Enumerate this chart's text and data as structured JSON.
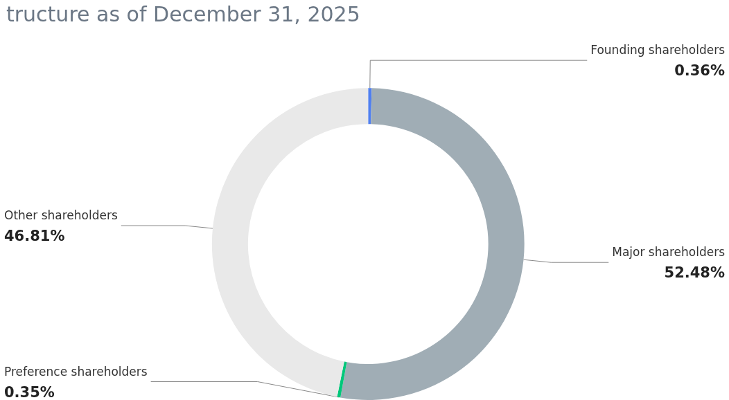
{
  "chart_data": {
    "type": "donut",
    "title": "tructure as of December 31, 2025",
    "categories": [
      "Founding shareholders",
      "Major shareholders",
      "Preference shareholders",
      "Other shareholders"
    ],
    "values": [
      0.36,
      52.48,
      0.35,
      46.81
    ],
    "value_labels": [
      "0.36%",
      "52.48%",
      "0.35%",
      "46.81%"
    ],
    "colors": [
      "#4f7ff0",
      "#a0adb5",
      "#00c77a",
      "#e9e9e9"
    ],
    "legend": false
  }
}
